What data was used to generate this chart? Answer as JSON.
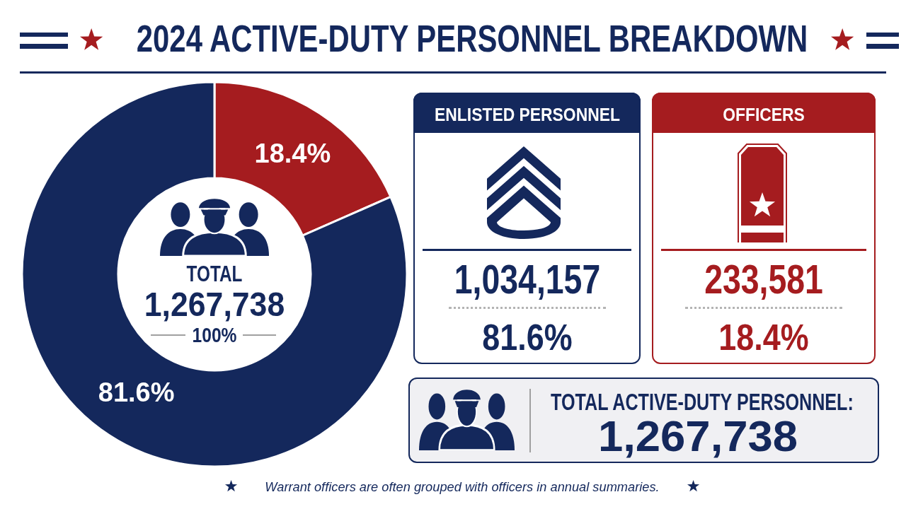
{
  "chart_data": [
    {
      "type": "donut",
      "title": "2024 ACTIVE-DUTY PERSONNEL BREAKDOWN",
      "categories": [
        null,
        null
      ],
      "values": [
        18.4,
        81.6
      ],
      "colors": [
        "#a51c1f",
        "#14285c"
      ],
      "value_labels": [
        "18.4%",
        "81.6%"
      ],
      "annotations": [
        "TOTAL",
        "1,267,738",
        "100%",
        "Warrant officers are often grouped with officers in annual summaries."
      ]
    },
    {
      "type": "other",
      "title": "ENLISTED PERSONNEL",
      "annotations": [
        "1,034,157",
        "81.6%"
      ],
      "color": "#14285c"
    },
    {
      "type": "other",
      "title": "OFFICERS",
      "annotations": [
        "233,581",
        "18.4%"
      ],
      "color": "#a51c1f"
    },
    {
      "type": "other",
      "title": "TOTAL ACTIVE-DUTY PERSONNEL:",
      "annotations": [
        "1,267,738"
      ],
      "color": "#14285c"
    }
  ]
}
